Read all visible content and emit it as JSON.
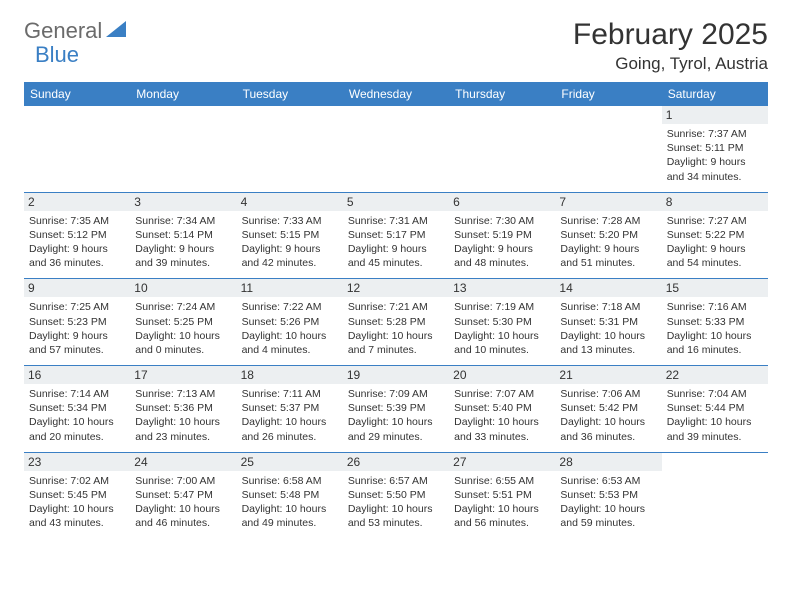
{
  "logo": {
    "general": "General",
    "blue": "Blue"
  },
  "title": {
    "monthYear": "February 2025",
    "location": "Going, Tyrol, Austria"
  },
  "colors": {
    "headerBar": "#3a7fc4",
    "headerText": "#ffffff",
    "dayNumBg": "#eceff1",
    "borderLine": "#3a7fc4",
    "textColor": "#333333",
    "logoGray": "#6b6b6b",
    "logoBlue": "#3a7fc4",
    "background": "#ffffff"
  },
  "weekdays": [
    "Sunday",
    "Monday",
    "Tuesday",
    "Wednesday",
    "Thursday",
    "Friday",
    "Saturday"
  ],
  "weeks": [
    [
      {
        "empty": true
      },
      {
        "empty": true
      },
      {
        "empty": true
      },
      {
        "empty": true
      },
      {
        "empty": true
      },
      {
        "empty": true
      },
      {
        "num": "1",
        "sunrise": "Sunrise: 7:37 AM",
        "sunset": "Sunset: 5:11 PM",
        "day1": "Daylight: 9 hours",
        "day2": "and 34 minutes."
      }
    ],
    [
      {
        "num": "2",
        "sunrise": "Sunrise: 7:35 AM",
        "sunset": "Sunset: 5:12 PM",
        "day1": "Daylight: 9 hours",
        "day2": "and 36 minutes."
      },
      {
        "num": "3",
        "sunrise": "Sunrise: 7:34 AM",
        "sunset": "Sunset: 5:14 PM",
        "day1": "Daylight: 9 hours",
        "day2": "and 39 minutes."
      },
      {
        "num": "4",
        "sunrise": "Sunrise: 7:33 AM",
        "sunset": "Sunset: 5:15 PM",
        "day1": "Daylight: 9 hours",
        "day2": "and 42 minutes."
      },
      {
        "num": "5",
        "sunrise": "Sunrise: 7:31 AM",
        "sunset": "Sunset: 5:17 PM",
        "day1": "Daylight: 9 hours",
        "day2": "and 45 minutes."
      },
      {
        "num": "6",
        "sunrise": "Sunrise: 7:30 AM",
        "sunset": "Sunset: 5:19 PM",
        "day1": "Daylight: 9 hours",
        "day2": "and 48 minutes."
      },
      {
        "num": "7",
        "sunrise": "Sunrise: 7:28 AM",
        "sunset": "Sunset: 5:20 PM",
        "day1": "Daylight: 9 hours",
        "day2": "and 51 minutes."
      },
      {
        "num": "8",
        "sunrise": "Sunrise: 7:27 AM",
        "sunset": "Sunset: 5:22 PM",
        "day1": "Daylight: 9 hours",
        "day2": "and 54 minutes."
      }
    ],
    [
      {
        "num": "9",
        "sunrise": "Sunrise: 7:25 AM",
        "sunset": "Sunset: 5:23 PM",
        "day1": "Daylight: 9 hours",
        "day2": "and 57 minutes."
      },
      {
        "num": "10",
        "sunrise": "Sunrise: 7:24 AM",
        "sunset": "Sunset: 5:25 PM",
        "day1": "Daylight: 10 hours",
        "day2": "and 0 minutes."
      },
      {
        "num": "11",
        "sunrise": "Sunrise: 7:22 AM",
        "sunset": "Sunset: 5:26 PM",
        "day1": "Daylight: 10 hours",
        "day2": "and 4 minutes."
      },
      {
        "num": "12",
        "sunrise": "Sunrise: 7:21 AM",
        "sunset": "Sunset: 5:28 PM",
        "day1": "Daylight: 10 hours",
        "day2": "and 7 minutes."
      },
      {
        "num": "13",
        "sunrise": "Sunrise: 7:19 AM",
        "sunset": "Sunset: 5:30 PM",
        "day1": "Daylight: 10 hours",
        "day2": "and 10 minutes."
      },
      {
        "num": "14",
        "sunrise": "Sunrise: 7:18 AM",
        "sunset": "Sunset: 5:31 PM",
        "day1": "Daylight: 10 hours",
        "day2": "and 13 minutes."
      },
      {
        "num": "15",
        "sunrise": "Sunrise: 7:16 AM",
        "sunset": "Sunset: 5:33 PM",
        "day1": "Daylight: 10 hours",
        "day2": "and 16 minutes."
      }
    ],
    [
      {
        "num": "16",
        "sunrise": "Sunrise: 7:14 AM",
        "sunset": "Sunset: 5:34 PM",
        "day1": "Daylight: 10 hours",
        "day2": "and 20 minutes."
      },
      {
        "num": "17",
        "sunrise": "Sunrise: 7:13 AM",
        "sunset": "Sunset: 5:36 PM",
        "day1": "Daylight: 10 hours",
        "day2": "and 23 minutes."
      },
      {
        "num": "18",
        "sunrise": "Sunrise: 7:11 AM",
        "sunset": "Sunset: 5:37 PM",
        "day1": "Daylight: 10 hours",
        "day2": "and 26 minutes."
      },
      {
        "num": "19",
        "sunrise": "Sunrise: 7:09 AM",
        "sunset": "Sunset: 5:39 PM",
        "day1": "Daylight: 10 hours",
        "day2": "and 29 minutes."
      },
      {
        "num": "20",
        "sunrise": "Sunrise: 7:07 AM",
        "sunset": "Sunset: 5:40 PM",
        "day1": "Daylight: 10 hours",
        "day2": "and 33 minutes."
      },
      {
        "num": "21",
        "sunrise": "Sunrise: 7:06 AM",
        "sunset": "Sunset: 5:42 PM",
        "day1": "Daylight: 10 hours",
        "day2": "and 36 minutes."
      },
      {
        "num": "22",
        "sunrise": "Sunrise: 7:04 AM",
        "sunset": "Sunset: 5:44 PM",
        "day1": "Daylight: 10 hours",
        "day2": "and 39 minutes."
      }
    ],
    [
      {
        "num": "23",
        "sunrise": "Sunrise: 7:02 AM",
        "sunset": "Sunset: 5:45 PM",
        "day1": "Daylight: 10 hours",
        "day2": "and 43 minutes."
      },
      {
        "num": "24",
        "sunrise": "Sunrise: 7:00 AM",
        "sunset": "Sunset: 5:47 PM",
        "day1": "Daylight: 10 hours",
        "day2": "and 46 minutes."
      },
      {
        "num": "25",
        "sunrise": "Sunrise: 6:58 AM",
        "sunset": "Sunset: 5:48 PM",
        "day1": "Daylight: 10 hours",
        "day2": "and 49 minutes."
      },
      {
        "num": "26",
        "sunrise": "Sunrise: 6:57 AM",
        "sunset": "Sunset: 5:50 PM",
        "day1": "Daylight: 10 hours",
        "day2": "and 53 minutes."
      },
      {
        "num": "27",
        "sunrise": "Sunrise: 6:55 AM",
        "sunset": "Sunset: 5:51 PM",
        "day1": "Daylight: 10 hours",
        "day2": "and 56 minutes."
      },
      {
        "num": "28",
        "sunrise": "Sunrise: 6:53 AM",
        "sunset": "Sunset: 5:53 PM",
        "day1": "Daylight: 10 hours",
        "day2": "and 59 minutes."
      },
      {
        "empty": true
      }
    ]
  ]
}
